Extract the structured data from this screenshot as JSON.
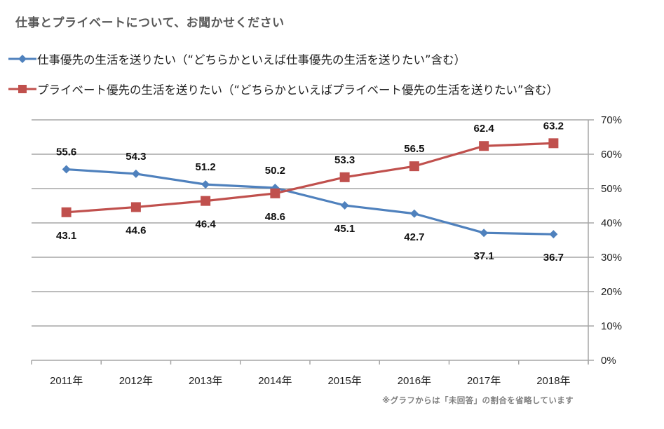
{
  "title": "仕事とプライベートについて、お聞かせください",
  "note": "※グラフからは「未回答」の割合を省略しています",
  "chart_data": {
    "type": "line",
    "title": "仕事とプライベートについて、お聞かせください",
    "categories": [
      "2011年",
      "2012年",
      "2013年",
      "2014年",
      "2015年",
      "2016年",
      "2017年",
      "2018年"
    ],
    "series": [
      {
        "name": "仕事優先の生活を送りたい（“どちらかといえば仕事優先の生活を送りたい”含む）",
        "color": "#4f81bd",
        "marker": "diamond",
        "label_position": [
          "above",
          "above",
          "above",
          "above",
          "below",
          "below",
          "below",
          "below"
        ],
        "values": [
          55.6,
          54.3,
          51.2,
          50.2,
          45.1,
          42.7,
          37.1,
          36.7
        ]
      },
      {
        "name": "プライベート優先の生活を送りたい（“どちらかといえばプライベート優先の生活を送りたい”含む）",
        "color": "#c0504d",
        "marker": "square",
        "label_position": [
          "below",
          "below",
          "below",
          "below",
          "above",
          "above",
          "above",
          "above"
        ],
        "values": [
          43.1,
          44.6,
          46.4,
          48.6,
          53.3,
          56.5,
          62.4,
          63.2
        ]
      }
    ],
    "xlabel": "",
    "ylabel": "",
    "ylim": [
      0,
      70
    ],
    "yticks": [
      "0%",
      "10%",
      "20%",
      "30%",
      "40%",
      "50%",
      "60%",
      "70%"
    ],
    "y_axis_side": "right",
    "grid": true,
    "legend_position": "top-left"
  }
}
